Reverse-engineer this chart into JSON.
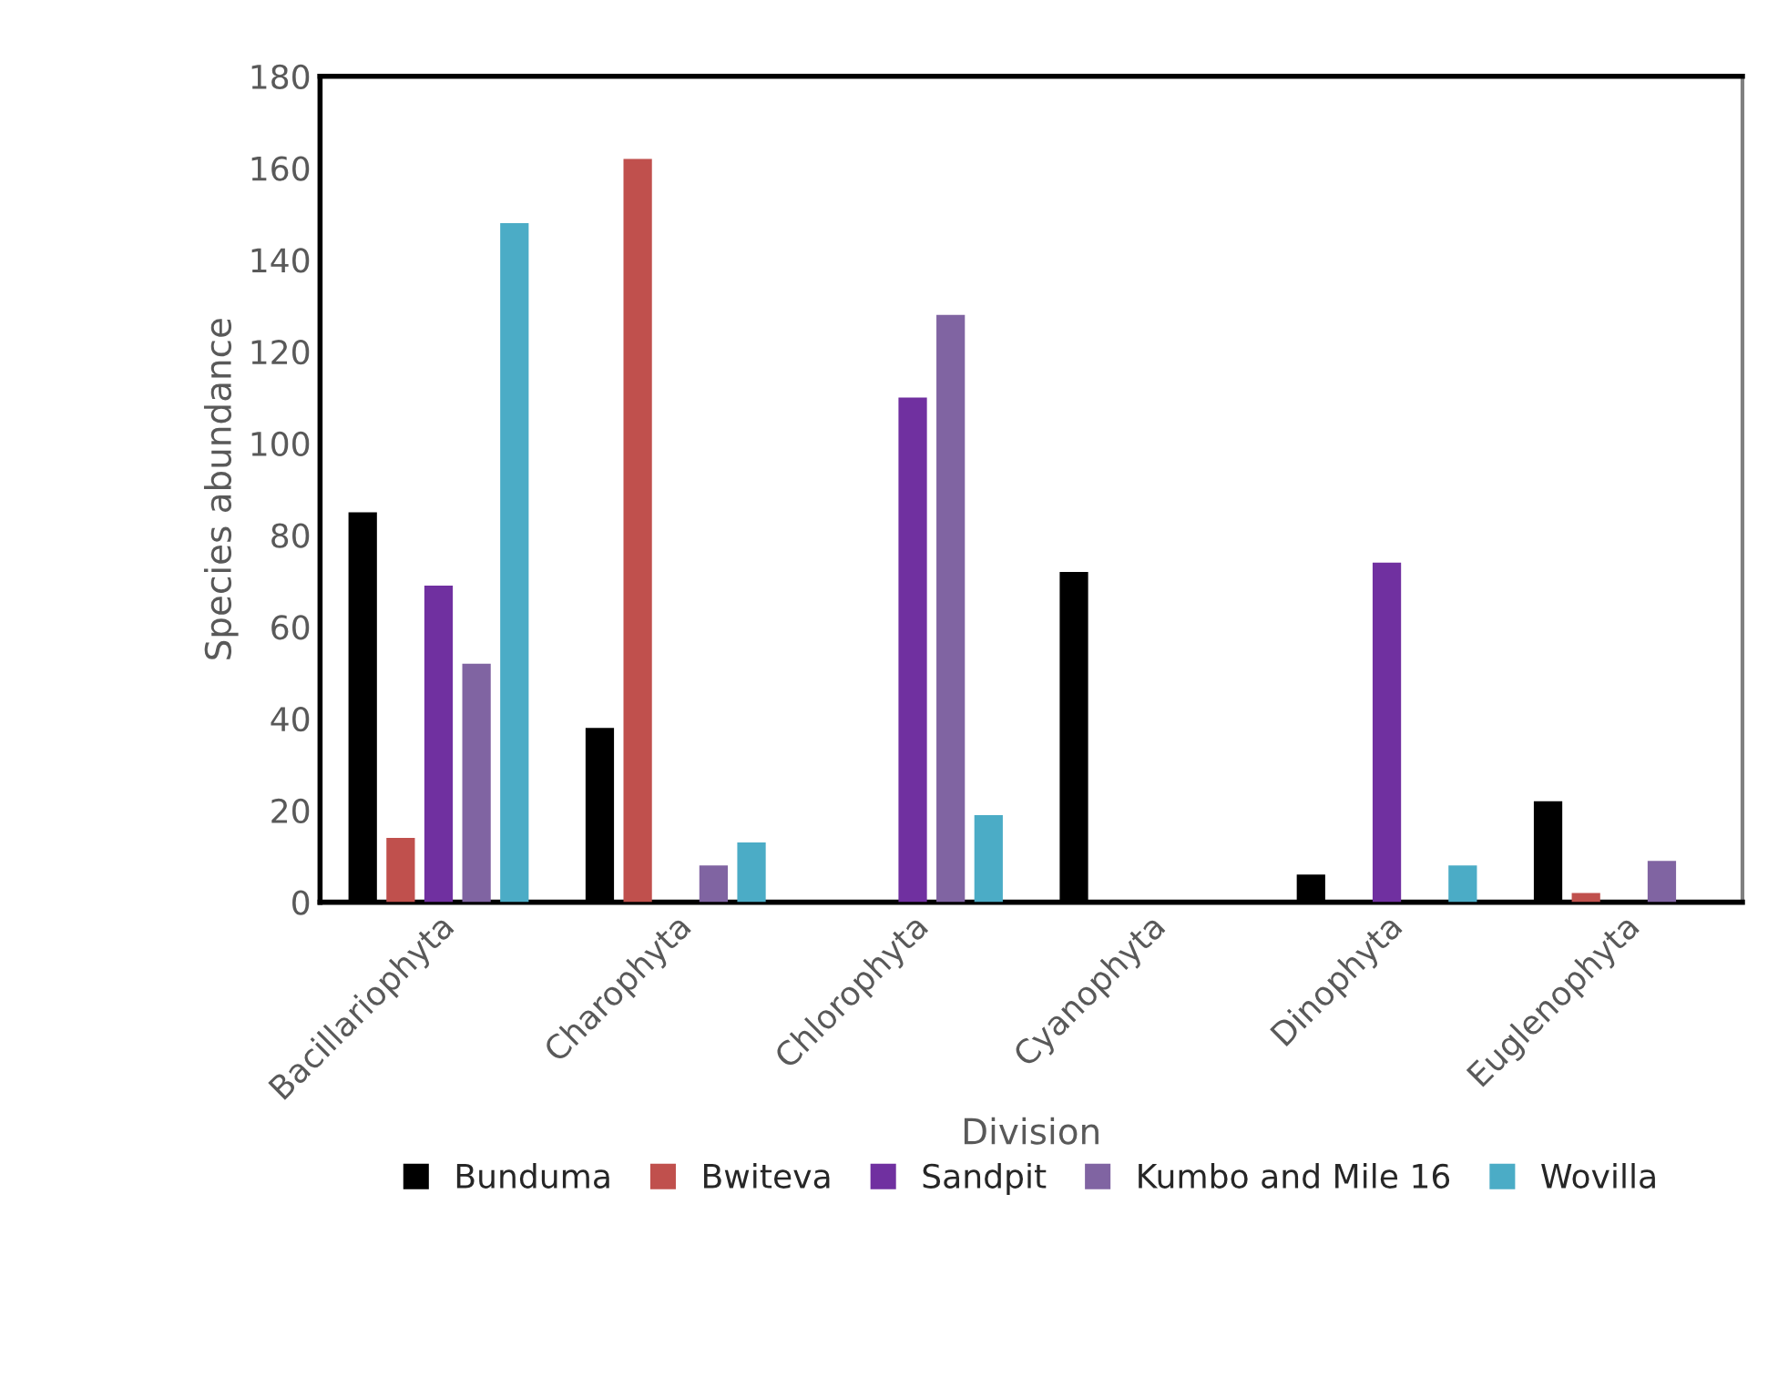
{
  "chart_data": {
    "type": "bar",
    "categories": [
      "Bacillariophyta",
      "Charophyta",
      "Chlorophyta",
      "Cyanophyta",
      "Dinophyta",
      "Euglenophyta"
    ],
    "series": [
      {
        "name": "Bunduma",
        "color": "#000000",
        "values": [
          85,
          38,
          null,
          72,
          6,
          22
        ]
      },
      {
        "name": "Bwiteva",
        "color": "#c0504d",
        "values": [
          14,
          162,
          null,
          null,
          null,
          2
        ]
      },
      {
        "name": "Sandpit",
        "color": "#7030a0",
        "values": [
          69,
          null,
          110,
          null,
          74,
          null
        ]
      },
      {
        "name": "Kumbo and Mile 16",
        "color": "#8064a2",
        "values": [
          52,
          8,
          128,
          null,
          null,
          9
        ]
      },
      {
        "name": "Wovilla",
        "color": "#4bacc6",
        "values": [
          148,
          13,
          19,
          null,
          8,
          null
        ]
      }
    ],
    "xlabel": "Division",
    "ylabel": "Species abundance",
    "ylim": [
      0,
      180
    ],
    "yticks": [
      0,
      20,
      40,
      60,
      80,
      100,
      120,
      140,
      160,
      180
    ],
    "legend": "bottom"
  }
}
